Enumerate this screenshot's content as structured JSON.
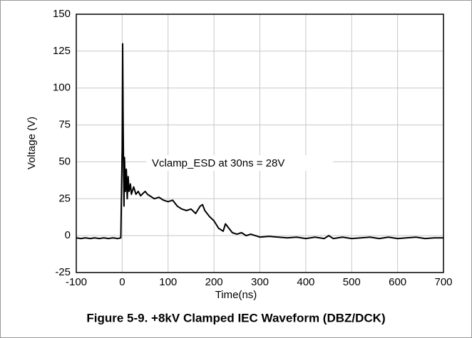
{
  "chart_data": {
    "type": "line",
    "caption": "Figure 5-9. +8kV Clamped IEC Waveform (DBZ/DCK)",
    "x_label": "Time(ns)",
    "y_label": "Voltage (V)",
    "annotation": "Vclamp_ESD at 30ns = 28V",
    "x": [
      -100,
      -90,
      -80,
      -70,
      -60,
      -50,
      -40,
      -30,
      -20,
      -10,
      -3,
      0,
      1,
      2,
      3,
      4,
      5,
      7,
      9,
      11,
      13,
      15,
      18,
      20,
      25,
      30,
      35,
      40,
      50,
      55,
      60,
      70,
      80,
      90,
      100,
      110,
      120,
      130,
      140,
      150,
      160,
      170,
      175,
      180,
      190,
      200,
      210,
      220,
      225,
      230,
      240,
      250,
      260,
      270,
      280,
      300,
      320,
      340,
      360,
      380,
      400,
      420,
      440,
      450,
      460,
      480,
      500,
      520,
      540,
      560,
      580,
      600,
      620,
      640,
      660,
      680,
      700
    ],
    "values": [
      -1.5,
      -2,
      -1.5,
      -2,
      -1.5,
      -2,
      -1.5,
      -2,
      -1.5,
      -2,
      -1.5,
      60,
      130,
      80,
      45,
      20,
      53,
      30,
      45,
      25,
      40,
      30,
      35,
      28,
      33,
      28,
      30,
      27,
      30,
      28,
      27,
      25,
      26,
      24,
      23,
      24,
      20,
      18,
      17,
      18,
      15,
      20,
      21,
      17,
      13,
      10,
      5,
      3,
      8,
      6,
      2,
      1,
      2,
      0,
      1,
      -1,
      -0.5,
      -1,
      -1.5,
      -1,
      -2,
      -1,
      -2,
      0,
      -2,
      -1,
      -2,
      -1.5,
      -1,
      -2,
      -1,
      -2,
      -1.5,
      -1,
      -2,
      -1.5,
      -1.5
    ],
    "color": "#000000",
    "xlim": [
      -100,
      700
    ],
    "xticks": [
      -100,
      0,
      100,
      200,
      300,
      400,
      500,
      600,
      700
    ],
    "ylim": [
      -25,
      150
    ],
    "yticks": [
      -25,
      0,
      25,
      50,
      75,
      100,
      125,
      150
    ],
    "grid": true
  }
}
